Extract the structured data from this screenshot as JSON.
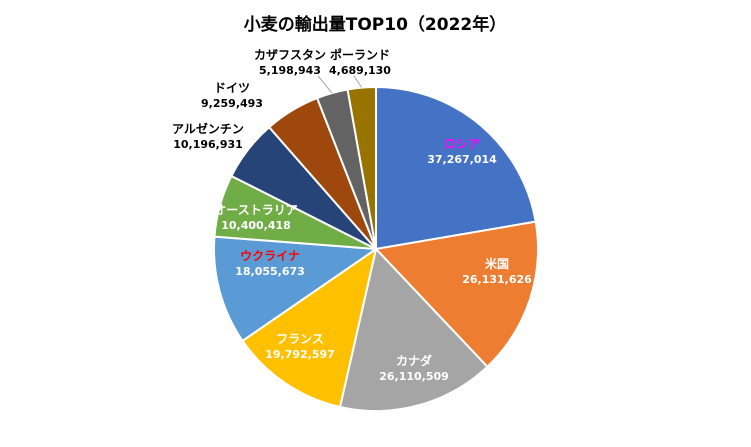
{
  "chart_data": {
    "type": "pie",
    "title": "小麦の輸出量TOP10（2022年）",
    "slices": [
      {
        "label": "ロシア",
        "value": 37267014,
        "value_text": "37,267,014",
        "color": "#4472C4",
        "label_color": "#FF00FF",
        "value_color": "#FFFFFF"
      },
      {
        "label": "米国",
        "value": 26131626,
        "value_text": "26,131,626",
        "color": "#ED7D31",
        "label_color": "#FFFFFF",
        "value_color": "#FFFFFF"
      },
      {
        "label": "カナダ",
        "value": 26110509,
        "value_text": "26,110,509",
        "color": "#A5A5A5",
        "label_color": "#FFFFFF",
        "value_color": "#FFFFFF"
      },
      {
        "label": "フランス",
        "value": 19792597,
        "value_text": "19,792,597",
        "color": "#FFC000",
        "label_color": "#FFFFFF",
        "value_color": "#FFFFFF"
      },
      {
        "label": "ウクライナ",
        "value": 18055673,
        "value_text": "18,055,673",
        "color": "#5B9BD5",
        "label_color": "#FF0000",
        "value_color": "#FFFFFF"
      },
      {
        "label": "オーストラリア",
        "value": 10400418,
        "value_text": "10,400,418",
        "color": "#70AD47",
        "label_color": "#FFFFFF",
        "value_color": "#FFFFFF"
      },
      {
        "label": "アルゼンチン",
        "value": 10196931,
        "value_text": "10,196,931",
        "color": "#264478",
        "label_color": "#000000",
        "value_color": "#000000"
      },
      {
        "label": "ドイツ",
        "value": 9259493,
        "value_text": "9,259,493",
        "color": "#9E480E",
        "label_color": "#000000",
        "value_color": "#000000"
      },
      {
        "label": "カザフスタン",
        "value": 5198943,
        "value_text": "5,198,943",
        "color": "#636363",
        "label_color": "#000000",
        "value_color": "#000000"
      },
      {
        "label": "ポーランド",
        "value": 4689130,
        "value_text": "4,689,130",
        "color": "#997300",
        "label_color": "#000000",
        "value_color": "#000000"
      }
    ],
    "legend": "none"
  }
}
